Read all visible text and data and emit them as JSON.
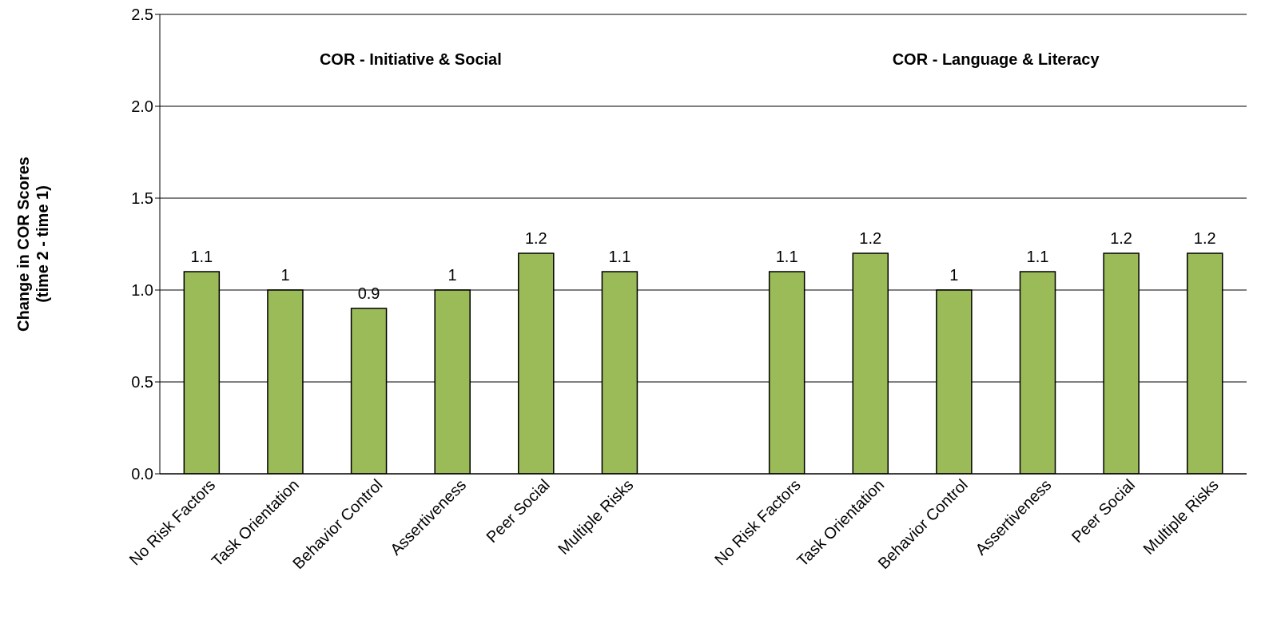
{
  "chart_data": {
    "type": "bar",
    "ylabel": "Change in COR Scores\n(time 2 - time 1)",
    "categories": [
      "No Risk Factors",
      "Task Orientation",
      "Behavior Control",
      "Assertiveness",
      "Peer Social",
      "Multiple Risks",
      null,
      "No Risk Factors",
      "Task Orientation",
      "Behavior Control",
      "Assertiveness",
      "Peer Social",
      "Multiple Risks"
    ],
    "values": [
      1.1,
      1,
      0.9,
      1,
      1.2,
      1.1,
      null,
      1.1,
      1.2,
      1,
      1.1,
      1.2,
      1.2
    ],
    "color": "#9bbb59",
    "ylim": [
      0,
      2.5
    ],
    "yticks": [
      {
        "value": 0,
        "label": "0.0"
      },
      {
        "value": 0.5,
        "label": "0.5"
      },
      {
        "value": 1,
        "label": "1.0"
      },
      {
        "value": 1.5,
        "label": "1.5"
      },
      {
        "value": 2,
        "label": "2.0"
      },
      {
        "value": 2.5,
        "label": "2.5"
      }
    ],
    "grid": "y",
    "data_labels": true,
    "annotations": [
      "COR - Initiative & Social",
      "COR - Language & Literacy"
    ]
  }
}
